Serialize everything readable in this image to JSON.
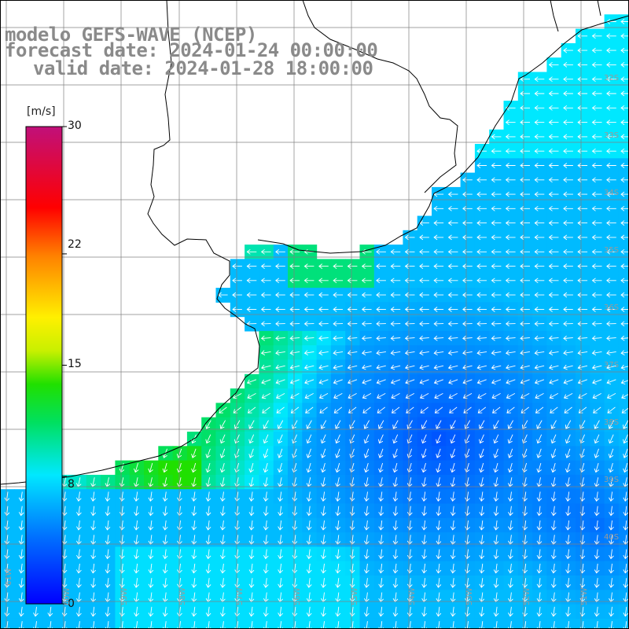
{
  "title": {
    "line1": "modelo GEFS-WAVE (NCEP)",
    "line2": "forecast date: 2024-01-24 00:00:00",
    "line3": "valid date: 2024-01-28 18:00:00"
  },
  "colorbar": {
    "unit": "[m/s]",
    "ticks": [
      "30",
      "22",
      "15",
      "8",
      "0"
    ],
    "tick_values": [
      30,
      22,
      15,
      8,
      0
    ],
    "range": [
      0,
      30
    ]
  },
  "axes": {
    "lat_labels": [
      "32S",
      "33S",
      "34S",
      "35S",
      "36S",
      "37S",
      "38S",
      "39S",
      "40S"
    ],
    "lon_labels": [
      "61W",
      "60W",
      "59W",
      "58W",
      "57W",
      "56W",
      "55W",
      "54W",
      "53W",
      "52W",
      "51W"
    ]
  },
  "colors": {
    "land": "#ffffff",
    "coastline": "#000000",
    "grid": "#808080",
    "arrow": "#ffffff",
    "title": "#8a8a8a"
  }
}
